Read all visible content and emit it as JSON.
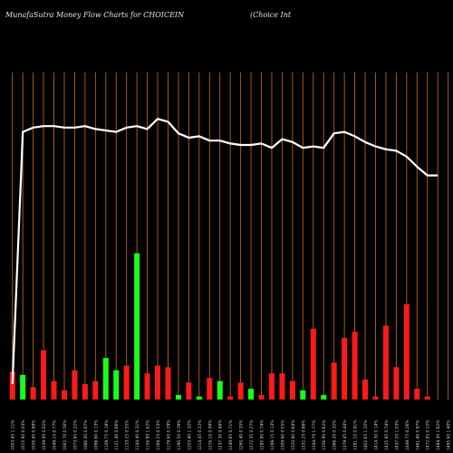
{
  "header": {
    "title": "MunafaSutra  Money Flow  Charts for CHOICEIN",
    "subtitle": "(Choice   Int"
  },
  "chart_data": {
    "type": "bar",
    "grid": "vertical",
    "x": [
      "1003.45 1.11%",
      "1015.60 0.03%",
      "1026.45 0.89%",
      "1039.00 0.02%",
      "1049.15 0.77%",
      "1062.70 0.56%",
      "1073.85 0.22%",
      "1086.00 0.67%",
      "1096.80 0.13%",
      "1109.75 0.19%",
      "1121.40 0.66%",
      "1133.25 0.55%",
      "1144.40 0.31%",
      "1156.90 1.62%",
      "1168.25 0.53%",
      "1179.60 0.29%",
      "1190.50 0.19%",
      "1203.40 1.32%",
      "1214.45 0.22%",
      "1226.10 0.09%",
      "1237.30 0.48%",
      "1249.65 0.71%",
      "1260.40 0.35%",
      "1272.35 0.27%",
      "1285.90 0.74%",
      "1298.15 0.13%",
      "1309.60 0.55%",
      "1320.80 0.64%",
      "1332.25 0.88%",
      "1344.70 1.77%",
      "1356.90 0.62%",
      "1368.20 0.32%",
      "1379.45 0.44%",
      "1391.10 0.91%",
      "1402.65 1.35%",
      "1414.30 0.14%",
      "1425.85 0.74%",
      "1437.20 1.03%",
      "1449.75 0.26%",
      "1461.40 0.97%",
      "1472.85 0.22%",
      "1484.30 1.82%",
      "1495.60 1.40%"
    ],
    "colors": [
      "red",
      "green",
      "red",
      "red",
      "red",
      "red",
      "red",
      "red",
      "red",
      "green",
      "green",
      "red",
      "green",
      "red",
      "red",
      "red",
      "green",
      "red",
      "green",
      "red",
      "green",
      "red",
      "red",
      "green",
      "red",
      "red",
      "red",
      "red",
      "green",
      "red",
      "green",
      "red",
      "red",
      "red",
      "red",
      "red",
      "red",
      "red",
      "red",
      "red",
      "red",
      "red",
      "red"
    ],
    "flow": [
      0.09,
      0.08,
      0.04,
      0.16,
      0.06,
      0.03,
      0.095,
      0.05,
      0.06,
      0.135,
      0.095,
      0.11,
      0.475,
      0.085,
      0.11,
      0.105,
      0.015,
      0.055,
      0.01,
      0.07,
      0.06,
      0.01,
      0.055,
      0.035,
      0.015,
      0.085,
      0.085,
      0.06,
      0.03,
      0.23,
      0.015,
      0.12,
      0.2,
      0.22,
      0.065,
      0.01,
      0.24,
      0.105,
      0.31,
      0.035,
      0.01,
      0.0,
      0.0
    ],
    "price": [
      0.05,
      0.92,
      0.935,
      0.94,
      0.94,
      0.935,
      0.935,
      0.94,
      0.93,
      0.925,
      0.92,
      0.935,
      0.94,
      0.93,
      0.965,
      0.955,
      0.915,
      0.9,
      0.905,
      0.89,
      0.89,
      0.88,
      0.875,
      0.875,
      0.88,
      0.865,
      0.895,
      0.885,
      0.865,
      0.87,
      0.865,
      0.915,
      0.92,
      0.905,
      0.885,
      0.87,
      0.86,
      0.855,
      0.835,
      0.8,
      0.77,
      0.77,
      0.0
    ]
  }
}
